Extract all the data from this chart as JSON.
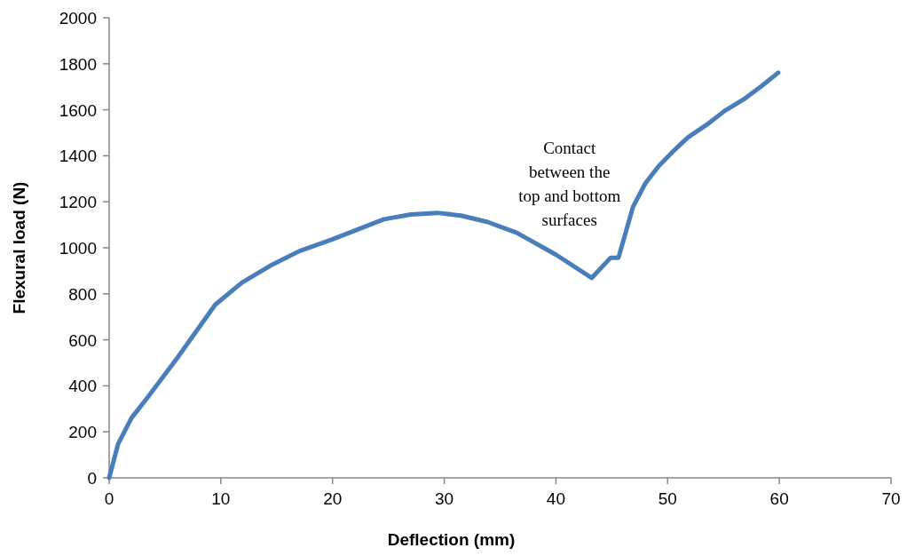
{
  "chart_data": {
    "type": "line",
    "xlabel": "Deflection (mm)",
    "ylabel": "Flexural load (N)",
    "xlim": [
      0,
      70
    ],
    "xticks": [
      0,
      10,
      20,
      30,
      40,
      50,
      60,
      70
    ],
    "ylim": [
      0,
      2000
    ],
    "yticks": [
      0,
      200,
      400,
      600,
      800,
      1000,
      1200,
      1400,
      1600,
      1800,
      2000
    ],
    "grid": false,
    "marker": "none",
    "line_style": "solid",
    "annotations": [
      {
        "text": "Contact\nbetween the\ntop and bottom\nsurfaces",
        "x": 43.2,
        "y": 869
      }
    ],
    "series": [
      {
        "color": "#4a7ebb",
        "x": [
          0,
          0.8,
          2,
          3.5,
          6.1,
          9.5,
          11.9,
          14.6,
          17,
          19.9,
          22,
          24.6,
          27,
          29.4,
          31.5,
          33.9,
          36.5,
          40,
          43.2,
          44.9,
          45.6,
          46.9,
          48,
          49.2,
          50.5,
          51.8,
          53.5,
          55.1,
          56.8,
          58.4,
          59.9
        ],
        "values": [
          0,
          147,
          260,
          353,
          521,
          753,
          849,
          927,
          985,
          1035,
          1075,
          1124,
          1145,
          1152,
          1140,
          1112,
          1065,
          970,
          869,
          957,
          957,
          1178,
          1280,
          1355,
          1420,
          1479,
          1535,
          1595,
          1645,
          1703,
          1761
        ]
      }
    ]
  }
}
